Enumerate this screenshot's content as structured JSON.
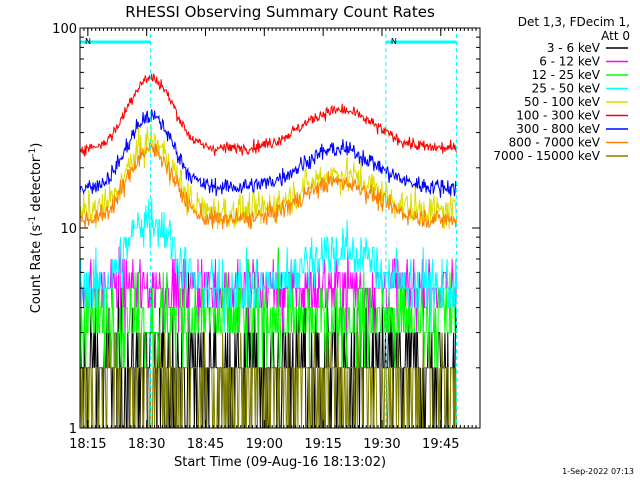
{
  "chart_data": {
    "type": "line",
    "title": "RHESSI Observing Summary Count Rates",
    "xlabel": "Start Time (09-Aug-16 18:13:02)",
    "ylabel": "Count Rate (s",
    "ylabel_sup": "-1",
    "ylabel_tail": " detector",
    "ylabel_close": ")",
    "y_scale": "log",
    "ylim": [
      1,
      100
    ],
    "y_ticks": [
      "1",
      "10",
      "100"
    ],
    "x_range_minutes": [
      0,
      102
    ],
    "x_ticks": [
      {
        "label": "18:15",
        "minute": 2
      },
      {
        "label": "18:30",
        "minute": 17
      },
      {
        "label": "18:45",
        "minute": 32
      },
      {
        "label": "19:00",
        "minute": 47
      },
      {
        "label": "19:15",
        "minute": 62
      },
      {
        "label": "19:30",
        "minute": 77
      },
      {
        "label": "19:45",
        "minute": 92
      }
    ],
    "grid": false,
    "legend_header": [
      "Det 1,3, FDecim 1,",
      "Att 0"
    ],
    "legend_position": "right",
    "night_marker": "N",
    "data_window_minutes": [
      0,
      96
    ],
    "night_intervals_minutes": [
      [
        0,
        18
      ],
      [
        78,
        96
      ]
    ],
    "series": [
      {
        "name": "3 - 6 keV",
        "color": "#000000",
        "base": 2.0,
        "profile": "flat",
        "noise": 0.55,
        "quantized": true
      },
      {
        "name": "6 - 12 keV",
        "color": "#ff00ff",
        "base": 5.0,
        "profile": "flat",
        "noise": 0.25,
        "quantized": true
      },
      {
        "name": "12 - 25 keV",
        "color": "#00ff00",
        "base": 3.5,
        "profile": "flat",
        "noise": 0.35,
        "quantized": true
      },
      {
        "name": "25 - 50 keV",
        "color": "#00ffff",
        "base": 5.0,
        "profile": "bumps",
        "noise": 0.22,
        "quantized": true
      },
      {
        "name": "50 - 100 keV",
        "color": "#dddd00",
        "base": 12,
        "profile": "bumps",
        "noise": 0.14
      },
      {
        "name": "100 - 300 keV",
        "color": "#ff0000",
        "base": 25,
        "profile": "bumps",
        "noise": 0.05
      },
      {
        "name": "300 - 800 keV",
        "color": "#0000ff",
        "base": 16,
        "profile": "bumps",
        "noise": 0.07
      },
      {
        "name": "800 - 7000 keV",
        "color": "#ff8000",
        "base": 11,
        "profile": "bumps",
        "noise": 0.08
      },
      {
        "name": "7000 - 15000 keV",
        "color": "#808000",
        "base": 1.7,
        "profile": "flat",
        "noise": 0.35,
        "quantized": true
      }
    ]
  },
  "footer": {
    "timestamp": "1-Sep-2022 07:13"
  }
}
